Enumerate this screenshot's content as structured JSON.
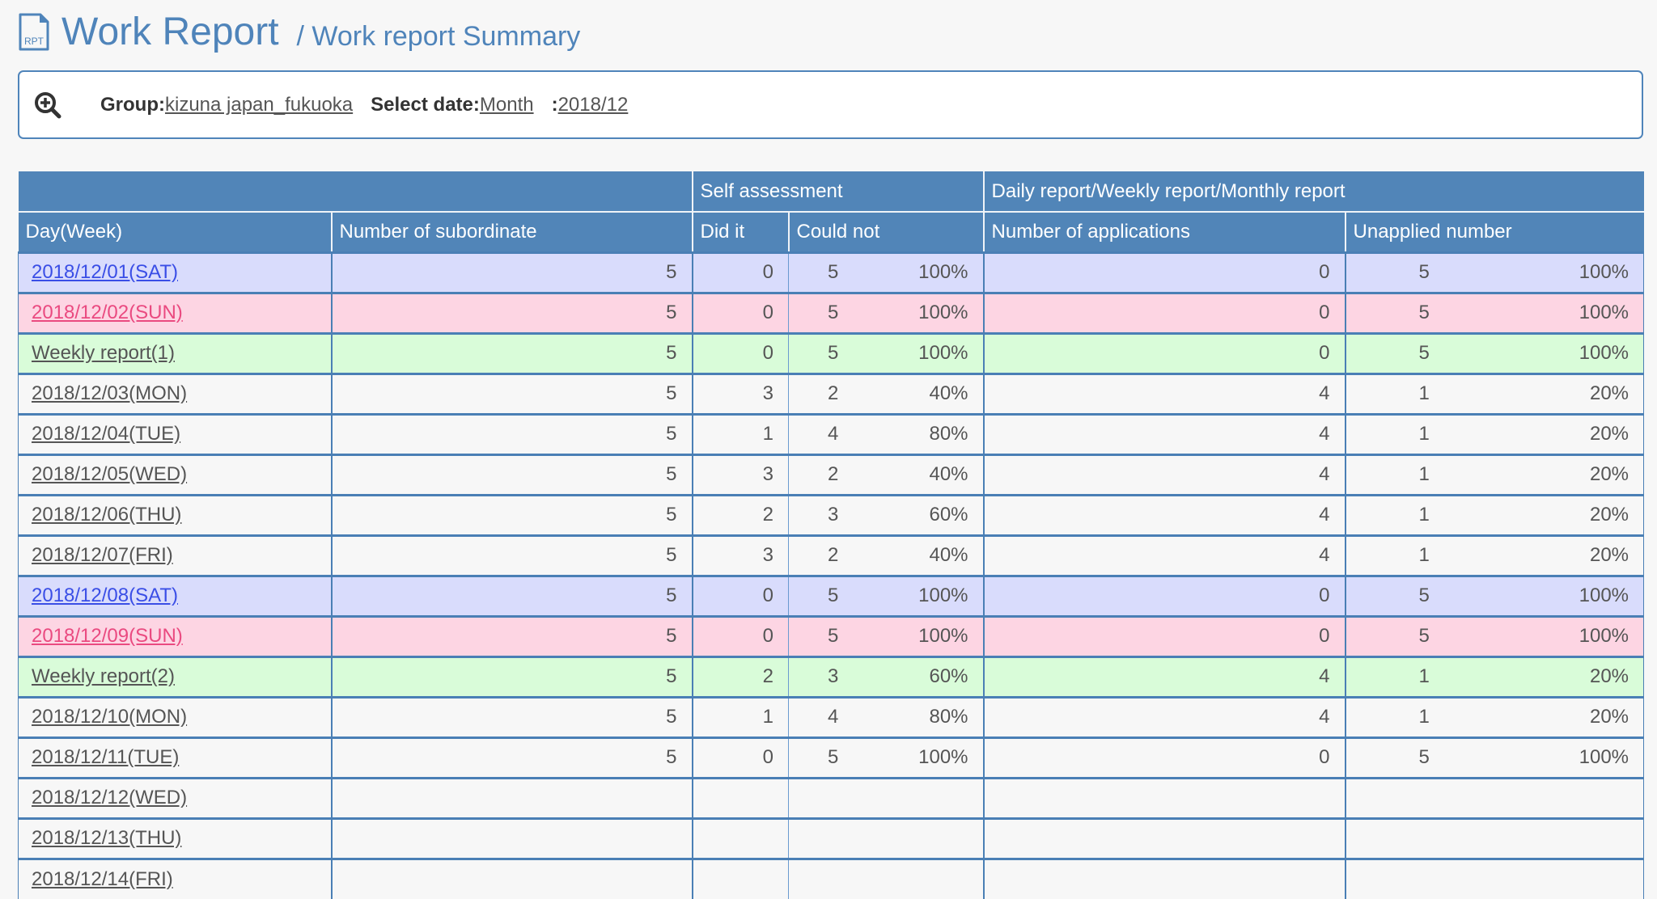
{
  "header": {
    "title": "Work Report",
    "subtitle": "/ Work report Summary",
    "icon_label": "RPT"
  },
  "search": {
    "group_label": "Group:",
    "group_value": "kizuna japan_fukuoka",
    "date_label": "Select date:",
    "date_mode": " Month",
    "date_sep": ":",
    "date_value": "2018/12"
  },
  "table": {
    "group_headers": {
      "self_assessment": "Self assessment",
      "reports": "Daily report/Weekly report/Monthly report"
    },
    "columns": {
      "day": "Day(Week)",
      "subordinates": "Number of subordinate",
      "did": "Did it",
      "could_not": "Could not",
      "applications": "Number of applications",
      "unapplied": "Unapplied number"
    },
    "rows": [
      {
        "day": "2018/12/01(SAT)",
        "type": "sat",
        "sub": "5",
        "did": "0",
        "not": "5",
        "not_pct": "100%",
        "apps": "0",
        "unapp": "5",
        "unapp_pct": "100%"
      },
      {
        "day": "2018/12/02(SUN)",
        "type": "sun",
        "sub": "5",
        "did": "0",
        "not": "5",
        "not_pct": "100%",
        "apps": "0",
        "unapp": "5",
        "unapp_pct": "100%"
      },
      {
        "day": "Weekly report(1)",
        "type": "weekly",
        "sub": "5",
        "did": "0",
        "not": "5",
        "not_pct": "100%",
        "apps": "0",
        "unapp": "5",
        "unapp_pct": "100%"
      },
      {
        "day": "2018/12/03(MON)",
        "type": "normal",
        "sub": "5",
        "did": "3",
        "not": "2",
        "not_pct": "40%",
        "apps": "4",
        "unapp": "1",
        "unapp_pct": "20%"
      },
      {
        "day": "2018/12/04(TUE)",
        "type": "normal",
        "sub": "5",
        "did": "1",
        "not": "4",
        "not_pct": "80%",
        "apps": "4",
        "unapp": "1",
        "unapp_pct": "20%"
      },
      {
        "day": "2018/12/05(WED)",
        "type": "normal",
        "sub": "5",
        "did": "3",
        "not": "2",
        "not_pct": "40%",
        "apps": "4",
        "unapp": "1",
        "unapp_pct": "20%"
      },
      {
        "day": "2018/12/06(THU)",
        "type": "normal",
        "sub": "5",
        "did": "2",
        "not": "3",
        "not_pct": "60%",
        "apps": "4",
        "unapp": "1",
        "unapp_pct": "20%"
      },
      {
        "day": "2018/12/07(FRI)",
        "type": "normal",
        "sub": "5",
        "did": "3",
        "not": "2",
        "not_pct": "40%",
        "apps": "4",
        "unapp": "1",
        "unapp_pct": "20%"
      },
      {
        "day": "2018/12/08(SAT)",
        "type": "sat",
        "sub": "5",
        "did": "0",
        "not": "5",
        "not_pct": "100%",
        "apps": "0",
        "unapp": "5",
        "unapp_pct": "100%"
      },
      {
        "day": "2018/12/09(SUN)",
        "type": "sun",
        "sub": "5",
        "did": "0",
        "not": "5",
        "not_pct": "100%",
        "apps": "0",
        "unapp": "5",
        "unapp_pct": "100%"
      },
      {
        "day": "Weekly report(2)",
        "type": "weekly",
        "sub": "5",
        "did": "2",
        "not": "3",
        "not_pct": "60%",
        "apps": "4",
        "unapp": "1",
        "unapp_pct": "20%"
      },
      {
        "day": "2018/12/10(MON)",
        "type": "normal",
        "sub": "5",
        "did": "1",
        "not": "4",
        "not_pct": "80%",
        "apps": "4",
        "unapp": "1",
        "unapp_pct": "20%"
      },
      {
        "day": "2018/12/11(TUE)",
        "type": "normal",
        "sub": "5",
        "did": "0",
        "not": "5",
        "not_pct": "100%",
        "apps": "0",
        "unapp": "5",
        "unapp_pct": "100%"
      },
      {
        "day": "2018/12/12(WED)",
        "type": "normal"
      },
      {
        "day": "2018/12/13(THU)",
        "type": "normal"
      },
      {
        "day": "2018/12/14(FRI)",
        "type": "normal"
      }
    ]
  },
  "colors": {
    "accent": "#5185b8",
    "sat_bg": "#d9dcfc",
    "sun_bg": "#fdd5e3",
    "weekly_bg": "#d9fcd9",
    "sat_link": "#3a4ee6",
    "sun_link": "#ea4a80"
  }
}
